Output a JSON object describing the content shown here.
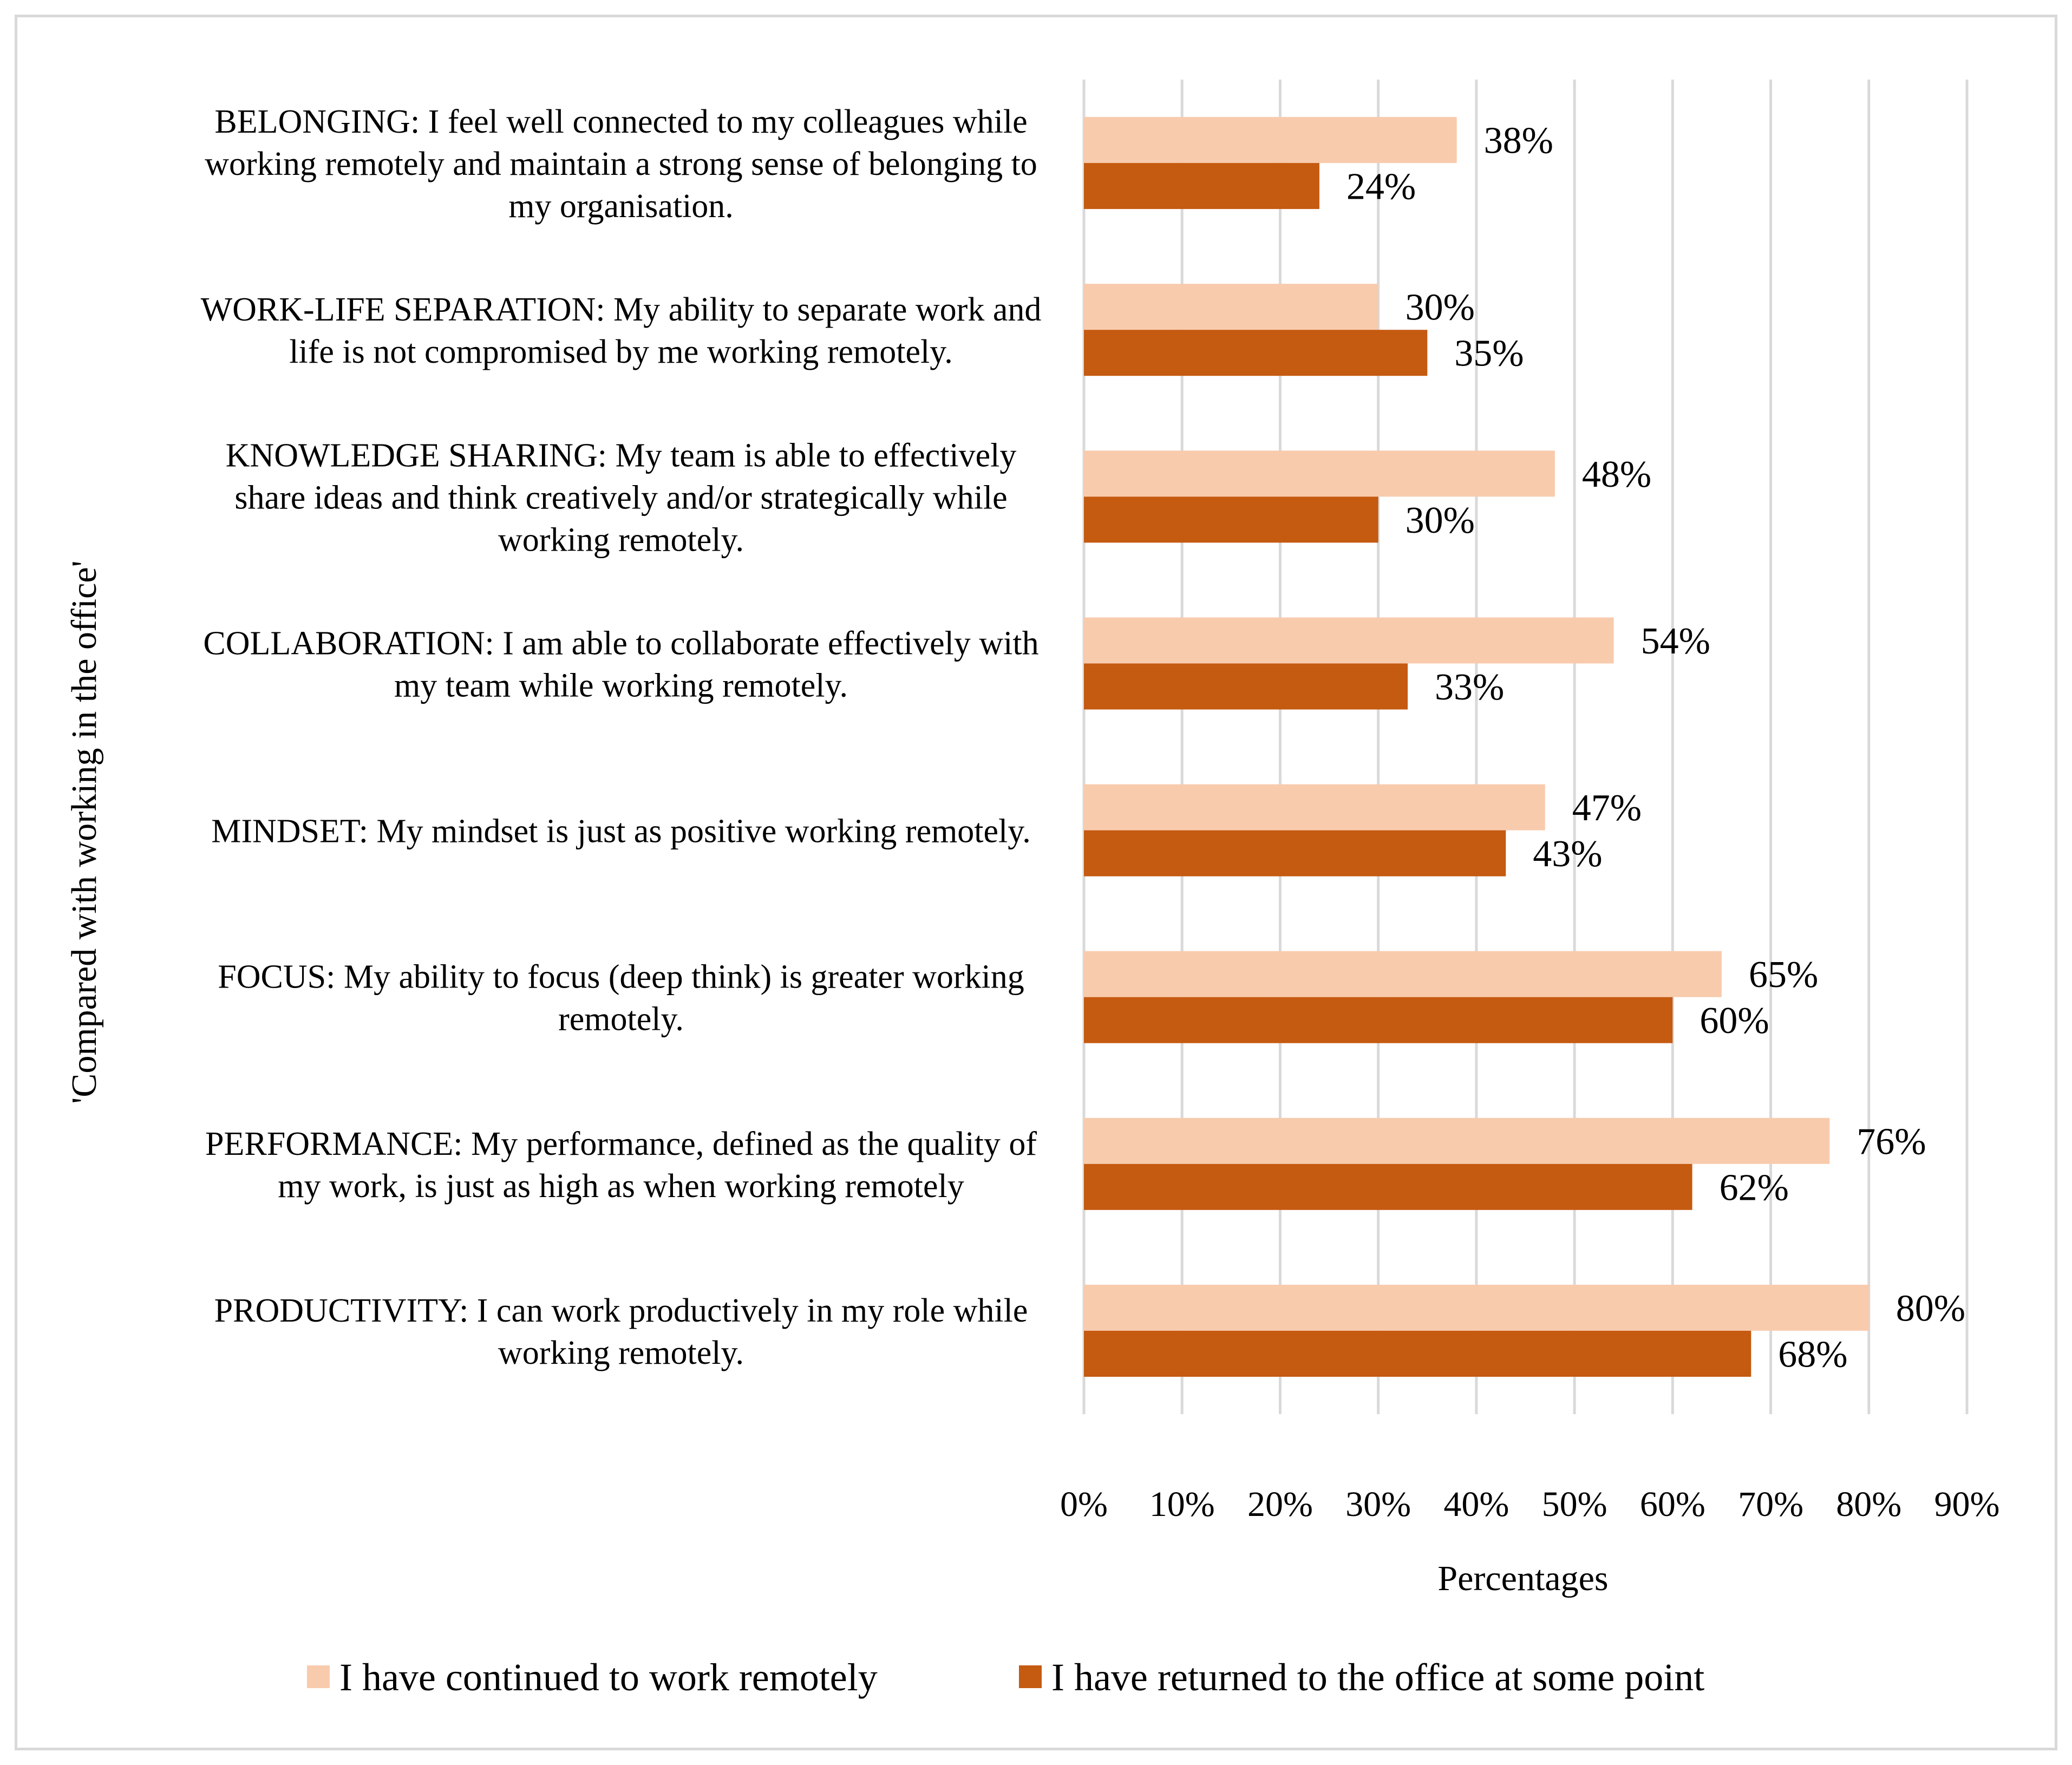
{
  "chart_data": {
    "type": "bar",
    "orientation": "horizontal",
    "title": "",
    "ylabel": "'Compared with working in the office'",
    "xlabel": "Percentages",
    "xlim": [
      0,
      90
    ],
    "xticks": [
      0,
      10,
      20,
      30,
      40,
      50,
      60,
      70,
      80,
      90
    ],
    "tick_suffix": "%",
    "grid": true,
    "legend_position": "bottom",
    "categories": [
      [
        "BELONGING: I feel well connected to my colleagues while",
        "working remotely and maintain a strong sense of belonging to",
        "my organisation."
      ],
      [
        "WORK-LIFE SEPARATION: My ability to separate work and",
        "life is not compromised by me working remotely."
      ],
      [
        "KNOWLEDGE SHARING: My team is able to effectively",
        "share ideas and think creatively and/or strategically while",
        "working remotely."
      ],
      [
        "COLLABORATION: I am able to collaborate effectively with",
        "my team while working remotely."
      ],
      [
        "MINDSET: My mindset is just as positive working remotely."
      ],
      [
        "FOCUS: My ability to focus (deep think) is greater working",
        "remotely."
      ],
      [
        "PERFORMANCE: My performance, defined as the quality of",
        "my work, is just as high as when working remotely"
      ],
      [
        "PRODUCTIVITY: I can work productively in my role while",
        "working remotely."
      ]
    ],
    "series": [
      {
        "name": "I have continued to work remotely",
        "color": "#F8CBAD",
        "values": [
          38,
          30,
          48,
          54,
          47,
          65,
          76,
          80
        ],
        "labels": [
          "38%",
          "30%",
          "48%",
          "54%",
          "47%",
          "65%",
          "76%",
          "80%"
        ]
      },
      {
        "name": "I have returned to the office at some point",
        "color": "#C55A11",
        "values": [
          24,
          35,
          30,
          33,
          43,
          60,
          62,
          68
        ],
        "labels": [
          "24%",
          "35%",
          "30%",
          "33%",
          "43%",
          "60%",
          "62%",
          "68%"
        ]
      }
    ],
    "gridline_color": "#d9d9d9"
  }
}
